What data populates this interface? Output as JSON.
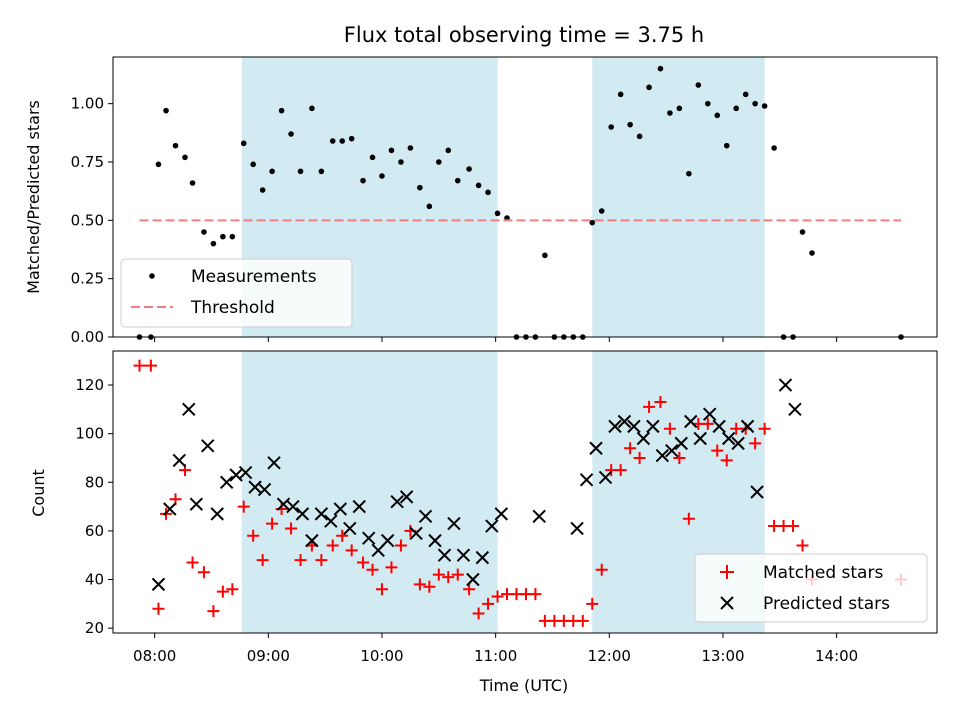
{
  "title": "Flux total observing time = 3.75 h",
  "colors": {
    "shade": "#add8e6",
    "measurement": "#000000",
    "threshold": "#f08080",
    "matched": "#ff0000",
    "predicted": "#000000"
  },
  "chart_data": [
    {
      "type": "scatter",
      "title": "Flux total observing time = 3.75 h",
      "xlabel": "",
      "ylabel": "Matched/Predicted stars",
      "xlim": [
        "07:38",
        "14:53"
      ],
      "ylim": [
        0,
        1.2
      ],
      "yticks": [
        0.0,
        0.25,
        0.5,
        0.75,
        1.0
      ],
      "ytick_labels": [
        "0.00",
        "0.25",
        "0.50",
        "0.75",
        "1.00"
      ],
      "grid": false,
      "legend_position": "lower-left",
      "shaded_intervals": [
        [
          "08:46",
          "11:01"
        ],
        [
          "11:51",
          "13:22"
        ]
      ],
      "series": [
        {
          "name": "Measurements",
          "marker": "dot",
          "points": [
            [
              "07:52",
              0.0
            ],
            [
              "07:58",
              0.0
            ],
            [
              "08:02",
              0.74
            ],
            [
              "08:06",
              0.97
            ],
            [
              "08:11",
              0.82
            ],
            [
              "08:16",
              0.77
            ],
            [
              "08:20",
              0.66
            ],
            [
              "08:26",
              0.45
            ],
            [
              "08:31",
              0.4
            ],
            [
              "08:36",
              0.43
            ],
            [
              "08:41",
              0.43
            ],
            [
              "08:47",
              0.83
            ],
            [
              "08:52",
              0.74
            ],
            [
              "08:57",
              0.63
            ],
            [
              "09:02",
              0.71
            ],
            [
              "09:07",
              0.97
            ],
            [
              "09:12",
              0.87
            ],
            [
              "09:17",
              0.71
            ],
            [
              "09:23",
              0.98
            ],
            [
              "09:28",
              0.71
            ],
            [
              "09:34",
              0.84
            ],
            [
              "09:39",
              0.84
            ],
            [
              "09:44",
              0.85
            ],
            [
              "09:50",
              0.67
            ],
            [
              "09:55",
              0.77
            ],
            [
              "10:00",
              0.69
            ],
            [
              "10:05",
              0.8
            ],
            [
              "10:10",
              0.75
            ],
            [
              "10:15",
              0.81
            ],
            [
              "10:20",
              0.64
            ],
            [
              "10:25",
              0.56
            ],
            [
              "10:30",
              0.75
            ],
            [
              "10:35",
              0.8
            ],
            [
              "10:40",
              0.67
            ],
            [
              "10:46",
              0.72
            ],
            [
              "10:51",
              0.65
            ],
            [
              "10:56",
              0.62
            ],
            [
              "11:01",
              0.53
            ],
            [
              "11:06",
              0.51
            ],
            [
              "11:11",
              0.0
            ],
            [
              "11:16",
              0.0
            ],
            [
              "11:21",
              0.0
            ],
            [
              "11:26",
              0.35
            ],
            [
              "11:31",
              0.0
            ],
            [
              "11:36",
              0.0
            ],
            [
              "11:41",
              0.0
            ],
            [
              "11:46",
              0.0
            ],
            [
              "11:51",
              0.49
            ],
            [
              "11:56",
              0.54
            ],
            [
              "12:01",
              0.9
            ],
            [
              "12:06",
              1.04
            ],
            [
              "12:11",
              0.91
            ],
            [
              "12:16",
              0.86
            ],
            [
              "12:21",
              1.07
            ],
            [
              "12:27",
              1.15
            ],
            [
              "12:32",
              0.96
            ],
            [
              "12:37",
              0.98
            ],
            [
              "12:42",
              0.7
            ],
            [
              "12:47",
              1.08
            ],
            [
              "12:52",
              1.0
            ],
            [
              "12:57",
              0.95
            ],
            [
              "13:02",
              0.82
            ],
            [
              "13:07",
              0.98
            ],
            [
              "13:12",
              1.04
            ],
            [
              "13:17",
              1.0
            ],
            [
              "13:22",
              0.99
            ],
            [
              "13:27",
              0.81
            ],
            [
              "13:32",
              0.0
            ],
            [
              "13:37",
              0.0
            ],
            [
              "13:42",
              0.45
            ],
            [
              "13:47",
              0.36
            ],
            [
              "14:34",
              0.0
            ]
          ]
        },
        {
          "name": "Threshold",
          "marker": "dashed-line",
          "points": [
            [
              "07:52",
              0.5
            ],
            [
              "14:34",
              0.5
            ]
          ]
        }
      ]
    },
    {
      "type": "scatter",
      "title": "",
      "xlabel": "Time (UTC)",
      "ylabel": "Count",
      "xlim": [
        "07:38",
        "14:53"
      ],
      "ylim": [
        18,
        134
      ],
      "yticks": [
        20,
        40,
        60,
        80,
        100,
        120
      ],
      "xticks": [
        "08:00",
        "09:00",
        "10:00",
        "11:00",
        "12:00",
        "13:00",
        "14:00"
      ],
      "grid": false,
      "legend_position": "lower-right",
      "shaded_intervals": [
        [
          "08:46",
          "11:01"
        ],
        [
          "11:51",
          "13:22"
        ]
      ],
      "series": [
        {
          "name": "Matched stars",
          "marker": "plus",
          "points": [
            [
              "07:52",
              128
            ],
            [
              "07:58",
              128
            ],
            [
              "08:02",
              28
            ],
            [
              "08:06",
              67
            ],
            [
              "08:11",
              73
            ],
            [
              "08:16",
              85
            ],
            [
              "08:20",
              47
            ],
            [
              "08:26",
              43
            ],
            [
              "08:31",
              27
            ],
            [
              "08:36",
              35
            ],
            [
              "08:41",
              36
            ],
            [
              "08:47",
              70
            ],
            [
              "08:52",
              58
            ],
            [
              "08:57",
              48
            ],
            [
              "09:02",
              63
            ],
            [
              "09:07",
              69
            ],
            [
              "09:12",
              61
            ],
            [
              "09:17",
              48
            ],
            [
              "09:23",
              54
            ],
            [
              "09:28",
              48
            ],
            [
              "09:34",
              54
            ],
            [
              "09:39",
              58
            ],
            [
              "09:44",
              52
            ],
            [
              "09:50",
              47
            ],
            [
              "09:55",
              44
            ],
            [
              "10:00",
              36
            ],
            [
              "10:05",
              45
            ],
            [
              "10:10",
              54
            ],
            [
              "10:15",
              60
            ],
            [
              "10:20",
              38
            ],
            [
              "10:25",
              37
            ],
            [
              "10:30",
              42
            ],
            [
              "10:35",
              41
            ],
            [
              "10:40",
              42
            ],
            [
              "10:46",
              36
            ],
            [
              "10:51",
              26
            ],
            [
              "10:56",
              30
            ],
            [
              "11:01",
              33
            ],
            [
              "11:06",
              34
            ],
            [
              "11:11",
              34
            ],
            [
              "11:16",
              34
            ],
            [
              "11:21",
              34
            ],
            [
              "11:26",
              23
            ],
            [
              "11:31",
              23
            ],
            [
              "11:36",
              23
            ],
            [
              "11:41",
              23
            ],
            [
              "11:46",
              23
            ],
            [
              "11:51",
              30
            ],
            [
              "11:56",
              44
            ],
            [
              "12:01",
              85
            ],
            [
              "12:06",
              85
            ],
            [
              "12:11",
              94
            ],
            [
              "12:16",
              90
            ],
            [
              "12:21",
              111
            ],
            [
              "12:27",
              113
            ],
            [
              "12:32",
              102
            ],
            [
              "12:37",
              90
            ],
            [
              "12:42",
              65
            ],
            [
              "12:47",
              104
            ],
            [
              "12:52",
              104
            ],
            [
              "12:57",
              93
            ],
            [
              "13:02",
              89
            ],
            [
              "13:07",
              102
            ],
            [
              "13:12",
              102
            ],
            [
              "13:17",
              96
            ],
            [
              "13:22",
              102
            ],
            [
              "13:27",
              62
            ],
            [
              "13:32",
              62
            ],
            [
              "13:37",
              62
            ],
            [
              "13:42",
              54
            ],
            [
              "13:47",
              40
            ],
            [
              "14:34",
              40
            ]
          ]
        },
        {
          "name": "Predicted stars",
          "marker": "x",
          "points": [
            [
              "08:02",
              38
            ],
            [
              "08:08",
              69
            ],
            [
              "08:13",
              89
            ],
            [
              "08:18",
              110
            ],
            [
              "08:22",
              71
            ],
            [
              "08:28",
              95
            ],
            [
              "08:33",
              67
            ],
            [
              "08:38",
              80
            ],
            [
              "08:43",
              83
            ],
            [
              "08:48",
              84
            ],
            [
              "08:53",
              78
            ],
            [
              "08:58",
              77
            ],
            [
              "09:03",
              88
            ],
            [
              "09:08",
              71
            ],
            [
              "09:13",
              70
            ],
            [
              "09:18",
              67
            ],
            [
              "09:23",
              56
            ],
            [
              "09:28",
              67
            ],
            [
              "09:33",
              64
            ],
            [
              "09:38",
              69
            ],
            [
              "09:43",
              61
            ],
            [
              "09:48",
              70
            ],
            [
              "09:53",
              57
            ],
            [
              "09:58",
              52
            ],
            [
              "10:03",
              56
            ],
            [
              "10:08",
              72
            ],
            [
              "10:13",
              74
            ],
            [
              "10:18",
              59
            ],
            [
              "10:23",
              66
            ],
            [
              "10:28",
              56
            ],
            [
              "10:33",
              50
            ],
            [
              "10:38",
              63
            ],
            [
              "10:43",
              50
            ],
            [
              "10:48",
              40
            ],
            [
              "10:53",
              49
            ],
            [
              "10:58",
              62
            ],
            [
              "11:03",
              67
            ],
            [
              "11:23",
              66
            ],
            [
              "11:43",
              61
            ],
            [
              "11:48",
              81
            ],
            [
              "11:53",
              94
            ],
            [
              "11:58",
              82
            ],
            [
              "12:03",
              103
            ],
            [
              "12:08",
              105
            ],
            [
              "12:13",
              103
            ],
            [
              "12:18",
              98
            ],
            [
              "12:23",
              103
            ],
            [
              "12:28",
              91
            ],
            [
              "12:33",
              93
            ],
            [
              "12:38",
              96
            ],
            [
              "12:43",
              105
            ],
            [
              "12:48",
              98
            ],
            [
              "12:53",
              108
            ],
            [
              "12:58",
              103
            ],
            [
              "13:03",
              98
            ],
            [
              "13:08",
              96
            ],
            [
              "13:13",
              103
            ],
            [
              "13:18",
              76
            ],
            [
              "13:33",
              120
            ],
            [
              "13:38",
              110
            ]
          ]
        }
      ]
    }
  ]
}
